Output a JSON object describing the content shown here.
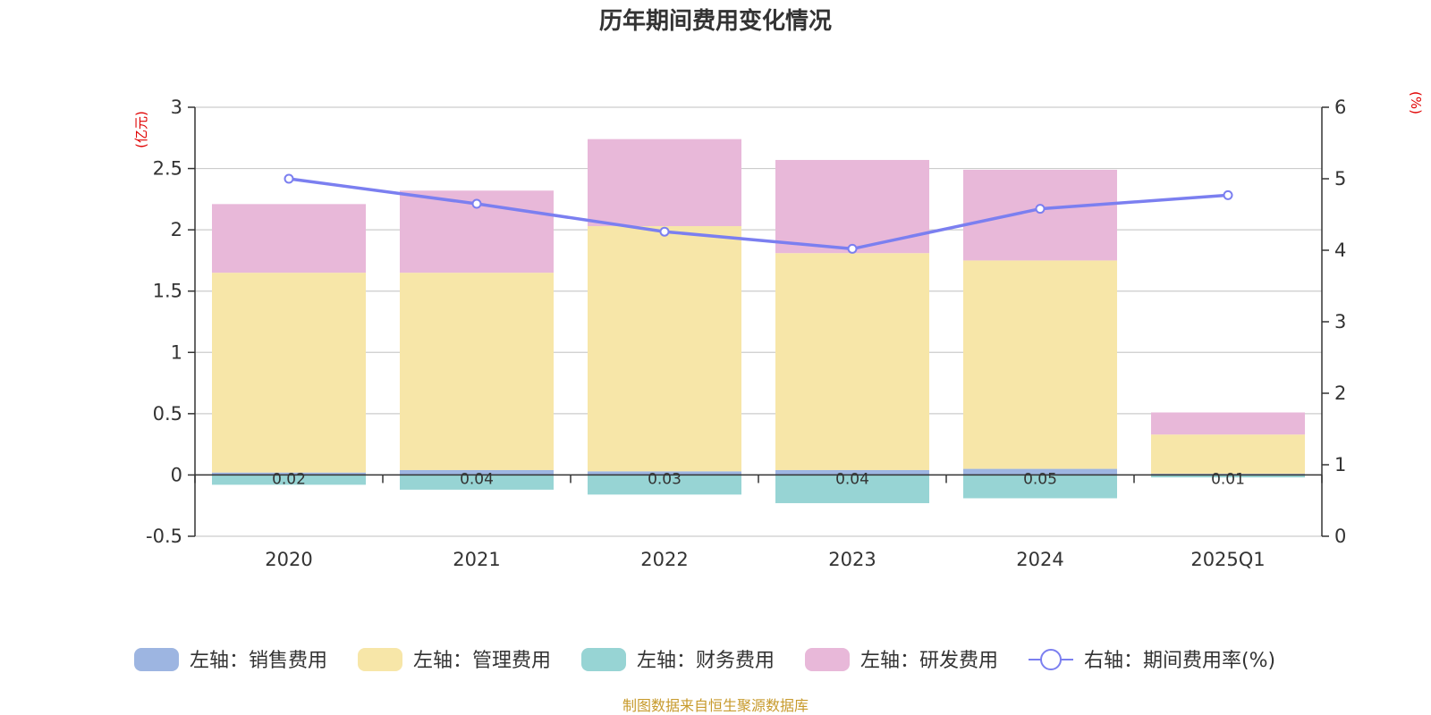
{
  "chart_data": {
    "type": "bar",
    "title": "历年期间费用变化情况",
    "categories": [
      "2020",
      "2021",
      "2022",
      "2023",
      "2024",
      "2025Q1"
    ],
    "series": [
      {
        "name": "左轴：销售费用",
        "axis": "left",
        "color": "#9db5e1",
        "values": [
          0.02,
          0.04,
          0.03,
          0.04,
          0.05,
          0.01
        ]
      },
      {
        "name": "左轴：管理费用",
        "axis": "left",
        "color": "#f7e6a8",
        "values": [
          1.63,
          1.61,
          2.0,
          1.77,
          1.7,
          0.32
        ]
      },
      {
        "name": "左轴：财务费用",
        "axis": "left",
        "color": "#97d4d4",
        "values": [
          -0.08,
          -0.12,
          -0.16,
          -0.23,
          -0.19,
          -0.02
        ]
      },
      {
        "name": "左轴：研发费用",
        "axis": "left",
        "color": "#e8b8d9",
        "values": [
          0.56,
          0.67,
          0.71,
          0.76,
          0.74,
          0.18
        ]
      },
      {
        "name": "右轴：期间费用率(%)",
        "axis": "right",
        "type": "line",
        "color": "#7b7ff0",
        "values": [
          5.0,
          4.65,
          4.26,
          4.02,
          4.58,
          4.77
        ]
      }
    ],
    "data_labels": [
      "0.02",
      "0.04",
      "0.03",
      "0.04",
      "0.05",
      "0.01"
    ],
    "y_left": {
      "label": "(亿元)",
      "ylim": [
        -0.5,
        3
      ],
      "ticks": [
        "-0.5",
        "0",
        "0.5",
        "1",
        "1.5",
        "2",
        "2.5",
        "3"
      ]
    },
    "y_right": {
      "label": "(%)",
      "ylim": [
        0,
        6
      ],
      "ticks": [
        "0",
        "1",
        "2",
        "3",
        "4",
        "5",
        "6"
      ]
    },
    "grid": true,
    "legend_position": "bottom"
  },
  "source_note": "制图数据来自恒生聚源数据库"
}
